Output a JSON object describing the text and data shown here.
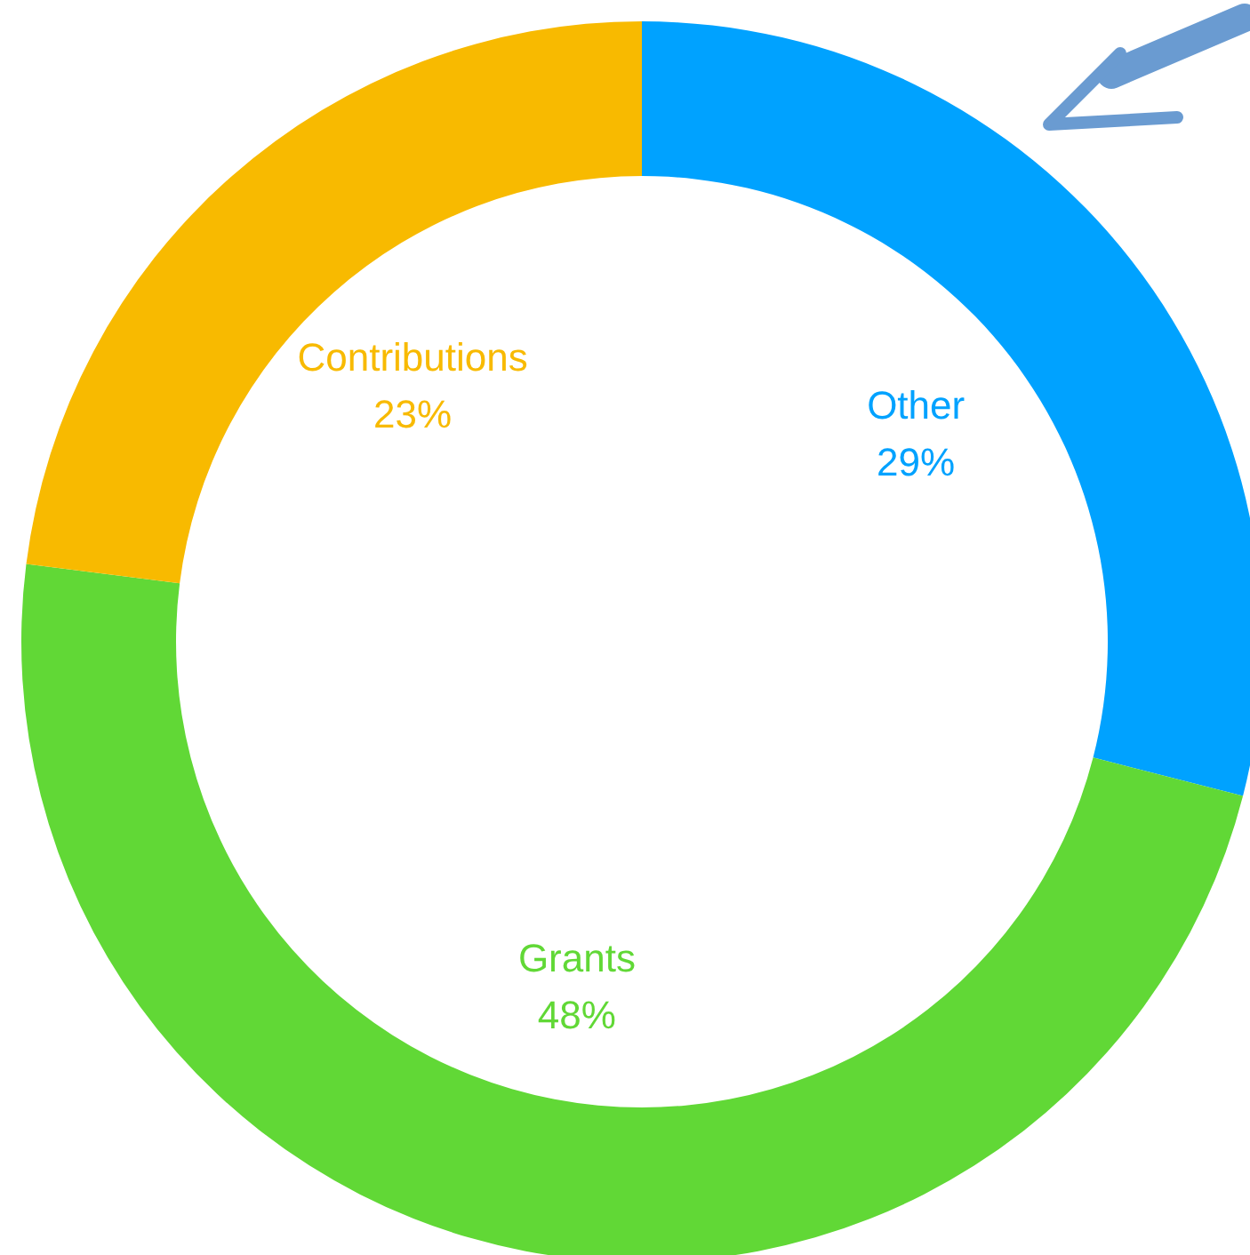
{
  "chart_data": {
    "type": "donut",
    "categories": [
      "Other",
      "Grants",
      "Contributions"
    ],
    "values": [
      29,
      48,
      23
    ],
    "value_labels": [
      "29%",
      "48%",
      "23%"
    ],
    "colors": [
      "#00a2ff",
      "#61d836",
      "#f8ba00"
    ]
  }
}
